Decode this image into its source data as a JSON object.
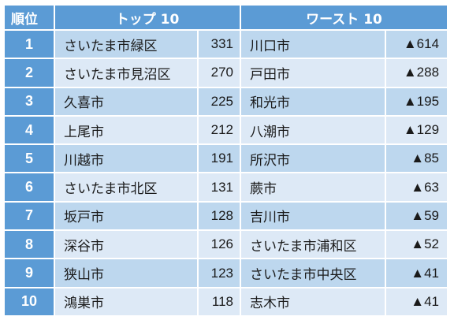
{
  "headers": {
    "rank": "順位",
    "top": "トップ 10",
    "worst": "ワースト 10"
  },
  "rows": [
    {
      "rank": "1",
      "top_name": "さいたま市緑区",
      "top_value": "331",
      "worst_name": "川口市",
      "worst_value": "▲614"
    },
    {
      "rank": "2",
      "top_name": "さいたま市見沼区",
      "top_value": "270",
      "worst_name": "戸田市",
      "worst_value": "▲288"
    },
    {
      "rank": "3",
      "top_name": "久喜市",
      "top_value": "225",
      "worst_name": "和光市",
      "worst_value": "▲195"
    },
    {
      "rank": "4",
      "top_name": "上尾市",
      "top_value": "212",
      "worst_name": "八潮市",
      "worst_value": "▲129"
    },
    {
      "rank": "5",
      "top_name": "川越市",
      "top_value": "191",
      "worst_name": "所沢市",
      "worst_value": "▲85"
    },
    {
      "rank": "6",
      "top_name": "さいたま市北区",
      "top_value": "131",
      "worst_name": "蕨市",
      "worst_value": "▲63"
    },
    {
      "rank": "7",
      "top_name": "坂戸市",
      "top_value": "128",
      "worst_name": "吉川市",
      "worst_value": "▲59"
    },
    {
      "rank": "8",
      "top_name": "深谷市",
      "top_value": "126",
      "worst_name": "さいたま市浦和区",
      "worst_value": "▲52"
    },
    {
      "rank": "9",
      "top_name": "狭山市",
      "top_value": "123",
      "worst_name": "さいたま市中央区",
      "worst_value": "▲41"
    },
    {
      "rank": "10",
      "top_name": "鴻巣市",
      "top_value": "118",
      "worst_name": "志木市",
      "worst_value": "▲41"
    }
  ],
  "colors": {
    "header": "#5b9bd5",
    "row_dark": "#bdd7ee",
    "row_light": "#dde9f6"
  }
}
